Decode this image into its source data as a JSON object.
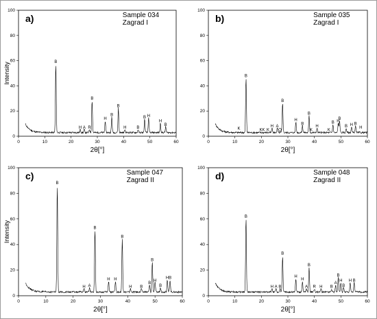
{
  "chart_data": [
    {
      "type": "line",
      "panel": "a)",
      "sample": "Sample 034",
      "site": "Zagrad I",
      "xlabel": "2θ[°]",
      "ylabel": "Intensity",
      "xlim": [
        0,
        60
      ],
      "ylim": [
        0,
        100
      ],
      "xticks": [
        0,
        10,
        20,
        30,
        40,
        50,
        60
      ],
      "yticks": [
        0,
        20,
        40,
        60,
        80,
        100
      ],
      "peaks": [
        {
          "x": 14.2,
          "y": 57,
          "label": "B"
        },
        {
          "x": 23.5,
          "y": 5,
          "label": "H"
        },
        {
          "x": 25.0,
          "y": 5,
          "label": "A"
        },
        {
          "x": 27.0,
          "y": 5,
          "label": "R"
        },
        {
          "x": 28.0,
          "y": 28,
          "label": "B"
        },
        {
          "x": 33.0,
          "y": 12,
          "label": "H"
        },
        {
          "x": 35.5,
          "y": 15,
          "label": "B"
        },
        {
          "x": 38.0,
          "y": 22,
          "label": "B"
        },
        {
          "x": 40.5,
          "y": 5,
          "label": "H"
        },
        {
          "x": 45.5,
          "y": 5,
          "label": "B"
        },
        {
          "x": 48.0,
          "y": 13,
          "label": "B"
        },
        {
          "x": 49.5,
          "y": 14,
          "label": "H"
        },
        {
          "x": 54.0,
          "y": 10,
          "label": "H"
        },
        {
          "x": 56.0,
          "y": 7,
          "label": "B"
        }
      ],
      "extra_labels": []
    },
    {
      "type": "line",
      "panel": "b)",
      "sample": "Sample 035",
      "site": "Zagrad I",
      "xlabel": "2θ[°]",
      "ylabel": "",
      "xlim": [
        0,
        60
      ],
      "ylim": [
        0,
        100
      ],
      "xticks": [
        0,
        10,
        20,
        30,
        40,
        50,
        60
      ],
      "yticks": [
        0,
        20,
        40,
        60,
        80,
        100
      ],
      "peaks": [
        {
          "x": 14.2,
          "y": 46,
          "label": "B"
        },
        {
          "x": 24.0,
          "y": 6,
          "label": "H"
        },
        {
          "x": 26.0,
          "y": 6,
          "label": "A"
        },
        {
          "x": 28.0,
          "y": 26,
          "label": "B"
        },
        {
          "x": 33.0,
          "y": 11,
          "label": "H"
        },
        {
          "x": 35.5,
          "y": 8,
          "label": "B"
        },
        {
          "x": 38.0,
          "y": 16,
          "label": "B"
        },
        {
          "x": 41.0,
          "y": 6,
          "label": "H"
        },
        {
          "x": 47.0,
          "y": 9,
          "label": "B"
        },
        {
          "x": 49.0,
          "y": 10,
          "label": "H"
        },
        {
          "x": 49.5,
          "y": 12,
          "label": "B"
        },
        {
          "x": 52.0,
          "y": 6,
          "label": "B"
        },
        {
          "x": 54.0,
          "y": 7,
          "label": "H"
        },
        {
          "x": 55.5,
          "y": 8,
          "label": "B"
        }
      ],
      "extra_labels": [
        {
          "x": 11.5,
          "y": 4,
          "label": "K"
        },
        {
          "x": 19.8,
          "y": 3,
          "label": "K"
        },
        {
          "x": 20.8,
          "y": 3,
          "label": "K"
        },
        {
          "x": 22.5,
          "y": 3,
          "label": "K"
        },
        {
          "x": 27.0,
          "y": 3,
          "label": "Q"
        },
        {
          "x": 38.8,
          "y": 3,
          "label": "K"
        },
        {
          "x": 45.5,
          "y": 3,
          "label": "K"
        },
        {
          "x": 57.5,
          "y": 5,
          "label": "H"
        }
      ]
    },
    {
      "type": "line",
      "panel": "c)",
      "sample": "Sample 047",
      "site": "Zagrad II",
      "xlabel": "2θ[°]",
      "ylabel": "Intensity",
      "xlim": [
        0,
        60
      ],
      "ylim": [
        0,
        100
      ],
      "xticks": [
        0,
        10,
        20,
        30,
        40,
        50,
        60
      ],
      "yticks": [
        0,
        20,
        40,
        60,
        80,
        100
      ],
      "peaks": [
        {
          "x": 14.2,
          "y": 86,
          "label": "B"
        },
        {
          "x": 24.0,
          "y": 5,
          "label": "H"
        },
        {
          "x": 26.0,
          "y": 6,
          "label": "A"
        },
        {
          "x": 28.0,
          "y": 51,
          "label": "B"
        },
        {
          "x": 33.0,
          "y": 11,
          "label": "H"
        },
        {
          "x": 35.5,
          "y": 11,
          "label": "H"
        },
        {
          "x": 38.0,
          "y": 44,
          "label": "B"
        },
        {
          "x": 41.0,
          "y": 5,
          "label": "H"
        },
        {
          "x": 45.0,
          "y": 5,
          "label": "B"
        },
        {
          "x": 48.0,
          "y": 8,
          "label": "B"
        },
        {
          "x": 49.0,
          "y": 26,
          "label": "B"
        },
        {
          "x": 50.0,
          "y": 10,
          "label": "H"
        },
        {
          "x": 52.0,
          "y": 6,
          "label": "B"
        },
        {
          "x": 54.5,
          "y": 12,
          "label": "H"
        },
        {
          "x": 55.5,
          "y": 12,
          "label": "B"
        }
      ],
      "extra_labels": []
    },
    {
      "type": "line",
      "panel": "d)",
      "sample": "Sample 048",
      "site": "Zagrad II",
      "xlabel": "2θ[°]",
      "ylabel": "",
      "xlim": [
        0,
        60
      ],
      "ylim": [
        0,
        100
      ],
      "xticks": [
        0,
        10,
        20,
        30,
        40,
        50,
        60
      ],
      "yticks": [
        0,
        20,
        40,
        60,
        80,
        100
      ],
      "peaks": [
        {
          "x": 14.2,
          "y": 60,
          "label": "B"
        },
        {
          "x": 24.0,
          "y": 5,
          "label": "H"
        },
        {
          "x": 25.5,
          "y": 5,
          "label": "A"
        },
        {
          "x": 27.0,
          "y": 5,
          "label": "B"
        },
        {
          "x": 28.0,
          "y": 31,
          "label": "B"
        },
        {
          "x": 33.0,
          "y": 13,
          "label": "H"
        },
        {
          "x": 35.5,
          "y": 11,
          "label": "H"
        },
        {
          "x": 37.0,
          "y": 5,
          "label": "A"
        },
        {
          "x": 38.0,
          "y": 22,
          "label": "B"
        },
        {
          "x": 40.0,
          "y": 5,
          "label": "R"
        },
        {
          "x": 42.5,
          "y": 5,
          "label": "H"
        },
        {
          "x": 46.5,
          "y": 5,
          "label": "B"
        },
        {
          "x": 48.0,
          "y": 8,
          "label": "A"
        },
        {
          "x": 49.0,
          "y": 14,
          "label": "B"
        },
        {
          "x": 50.0,
          "y": 10,
          "label": "H"
        },
        {
          "x": 51.0,
          "y": 6,
          "label": "B"
        },
        {
          "x": 53.5,
          "y": 10,
          "label": "H"
        },
        {
          "x": 55.0,
          "y": 10,
          "label": "B"
        }
      ],
      "extra_labels": []
    }
  ]
}
